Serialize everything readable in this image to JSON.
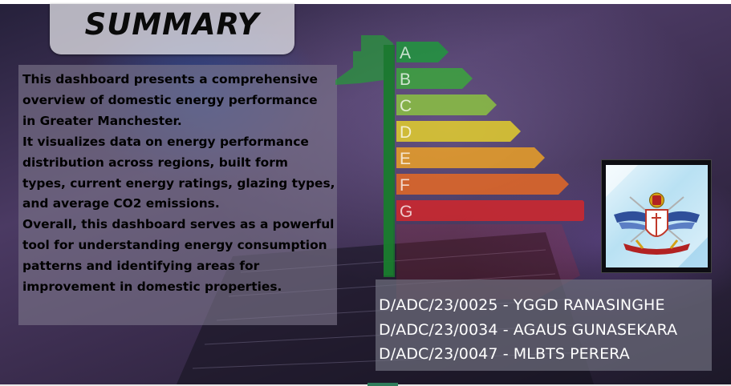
{
  "summary": {
    "title": "SUMMARY",
    "paragraphs": [
      "This dashboard presents a comprehensive\noverview of domestic energy performance\nin Greater Manchester.",
      "It visualizes data on energy performance\ndistribution across regions, built form\ntypes, current energy ratings, glazing types,\nand average CO2 emissions.",
      "Overall, this dashboard serves as a powerful\ntool for understanding energy consumption\npatterns and identifying areas for\nimprovement in domestic properties."
    ]
  },
  "energy_rating": {
    "labels": [
      "A",
      "B",
      "C",
      "D",
      "E",
      "F",
      "G"
    ],
    "colors": [
      "#1e9a3c",
      "#3aa83a",
      "#8cc63f",
      "#e8d32a",
      "#f0a423",
      "#ea6a22",
      "#d7262a"
    ]
  },
  "students": [
    "D/ADC/23/0025 - YGGD RANASINGHE",
    "D/ADC/23/0034 - AGAUS GUNASEKARA",
    "D/ADC/23/0047 - MLBTS PERERA"
  ],
  "logo": {
    "icon": "institution-crest-icon"
  }
}
